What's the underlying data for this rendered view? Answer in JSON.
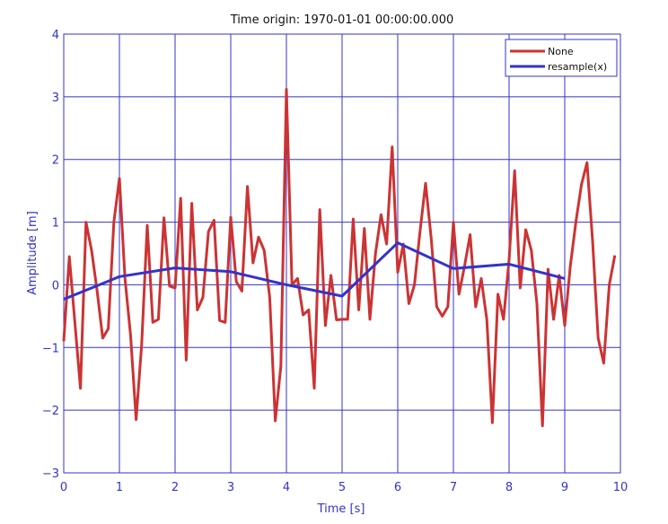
{
  "chart_data": {
    "type": "line",
    "title": "Time origin: 1970-01-01 00:00:00.000",
    "xlabel": "Time  [s]",
    "ylabel": "Amplitude  [m]",
    "xlim": [
      0,
      10
    ],
    "ylim": [
      -3,
      4
    ],
    "xticks": [
      0,
      1,
      2,
      3,
      4,
      5,
      6,
      7,
      8,
      9,
      10
    ],
    "yticks": [
      -3,
      -2,
      -1,
      0,
      1,
      2,
      3,
      4
    ],
    "grid": true,
    "legend_position": "top-right",
    "axis_color": "#3333cc",
    "series": [
      {
        "name": "None",
        "color": "#cc3333",
        "x": [
          0,
          0.1,
          0.2,
          0.3,
          0.4,
          0.5,
          0.6,
          0.7,
          0.8,
          0.9,
          1.0,
          1.1,
          1.2,
          1.3,
          1.4,
          1.5,
          1.6,
          1.7,
          1.8,
          1.9,
          2.0,
          2.1,
          2.2,
          2.3,
          2.4,
          2.5,
          2.6,
          2.7,
          2.8,
          2.9,
          3.0,
          3.1,
          3.2,
          3.3,
          3.4,
          3.5,
          3.6,
          3.7,
          3.8,
          3.9,
          4.0,
          4.1,
          4.2,
          4.3,
          4.4,
          4.5,
          4.6,
          4.7,
          4.8,
          4.9,
          5.0,
          5.1,
          5.2,
          5.3,
          5.4,
          5.5,
          5.6,
          5.7,
          5.8,
          5.9,
          6.0,
          6.1,
          6.2,
          6.3,
          6.4,
          6.5,
          6.6,
          6.7,
          6.8,
          6.9,
          7.0,
          7.1,
          7.2,
          7.3,
          7.4,
          7.5,
          7.6,
          7.7,
          7.8,
          7.9,
          8.0,
          8.1,
          8.2,
          8.3,
          8.4,
          8.5,
          8.6,
          8.7,
          8.8,
          8.9,
          9.0,
          9.1,
          9.2,
          9.3,
          9.4,
          9.5,
          9.6,
          9.7,
          9.8,
          9.9
        ],
        "y": [
          -0.9,
          0.45,
          -0.6,
          -1.65,
          1.0,
          0.55,
          -0.1,
          -0.85,
          -0.7,
          1.0,
          1.7,
          0.1,
          -0.8,
          -2.15,
          -0.95,
          0.95,
          -0.6,
          -0.55,
          1.07,
          -0.02,
          -0.05,
          1.38,
          -1.2,
          1.3,
          -0.4,
          -0.2,
          0.85,
          1.03,
          -0.57,
          -0.6,
          1.08,
          0.05,
          -0.1,
          1.57,
          0.35,
          0.76,
          0.55,
          -0.2,
          -2.17,
          -1.3,
          3.12,
          0.0,
          0.1,
          -0.48,
          -0.4,
          -1.65,
          1.2,
          -0.65,
          0.15,
          -0.56,
          -0.55,
          -0.55,
          1.05,
          -0.4,
          0.9,
          -0.55,
          0.5,
          1.12,
          0.65,
          2.2,
          0.2,
          0.65,
          -0.3,
          0.0,
          0.85,
          1.62,
          0.75,
          -0.35,
          -0.5,
          -0.35,
          1.0,
          -0.15,
          0.3,
          0.8,
          -0.35,
          0.1,
          -0.55,
          -2.2,
          -0.15,
          -0.55,
          0.4,
          1.82,
          -0.05,
          0.88,
          0.55,
          -0.3,
          -2.25,
          0.25,
          -0.55,
          0.15,
          -0.65,
          0.3,
          1.0,
          1.6,
          1.95,
          0.7,
          -0.85,
          -1.25,
          0.0,
          0.47
        ]
      },
      {
        "name": "resample(x)",
        "color": "#3333cc",
        "x": [
          0,
          1,
          2,
          3,
          4,
          5,
          6,
          7,
          8,
          9
        ],
        "y": [
          -0.23,
          0.13,
          0.27,
          0.21,
          0.0,
          -0.18,
          0.67,
          0.26,
          0.33,
          0.1
        ]
      }
    ]
  }
}
